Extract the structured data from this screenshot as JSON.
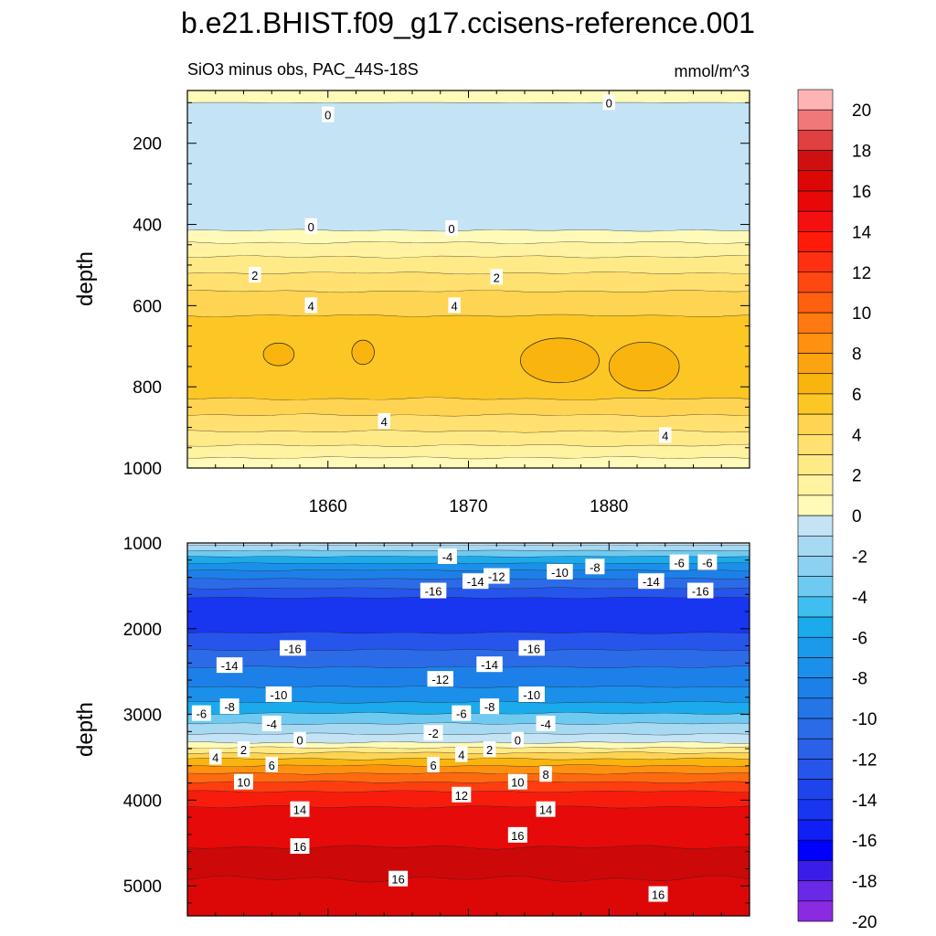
{
  "figure": {
    "title": "b.e21.BHIST.f09_g17.ccisens-reference.001",
    "left_string": "SiO3 minus obs, PAC_44S-18S",
    "right_string": "mmol/m^3"
  },
  "chart_data": [
    {
      "type": "contour",
      "panel": "upper",
      "title": "SiO3 minus obs, PAC_44S-18S",
      "units": "mmol/m^3",
      "xlabel": "",
      "ylabel": "depth",
      "xlim": [
        1850,
        1890
      ],
      "ylim": [
        1000,
        70
      ],
      "x_ticks": [
        1860,
        1870,
        1880
      ],
      "y_ticks": [
        200,
        400,
        600,
        800,
        1000
      ],
      "bands": [
        {
          "level": 0,
          "ytop": 70,
          "ybot": 100,
          "color": "#FFFAB8",
          "wave": 0.3
        },
        {
          "level": -1,
          "ytop": 100,
          "ybot": 415,
          "color": "#C4E3F5",
          "wave": 2.5
        },
        {
          "level": 0,
          "ytop": 415,
          "ybot": 445,
          "color": "#FFFAB8",
          "wave": 3.0
        },
        {
          "level": 1,
          "ytop": 445,
          "ybot": 480,
          "color": "#FFF2A0",
          "wave": 3.0
        },
        {
          "level": 2,
          "ytop": 480,
          "ybot": 520,
          "color": "#FFEA88",
          "wave": 3.0
        },
        {
          "level": 3,
          "ytop": 520,
          "ybot": 565,
          "color": "#FFE070",
          "wave": 3.0
        },
        {
          "level": 4,
          "ytop": 565,
          "ybot": 625,
          "color": "#FFD452",
          "wave": 3.0
        },
        {
          "level": 5,
          "ytop": 625,
          "ybot": 830,
          "color": "#FCC625",
          "wave": 3.5
        },
        {
          "level": 4,
          "ytop": 830,
          "ybot": 870,
          "color": "#FFD452",
          "wave": 3.0
        },
        {
          "level": 3,
          "ytop": 870,
          "ybot": 910,
          "color": "#FFE070",
          "wave": 3.0
        },
        {
          "level": 2,
          "ytop": 910,
          "ybot": 945,
          "color": "#FFEA88",
          "wave": 3.0
        },
        {
          "level": 1,
          "ytop": 945,
          "ybot": 975,
          "color": "#FFF2A0",
          "wave": 3.0
        },
        {
          "level": 0,
          "ytop": 975,
          "ybot": 1000,
          "color": "#FFFAB8",
          "wave": 3.0
        }
      ],
      "blobs": [
        {
          "x": 1856.5,
          "y": 720,
          "rx": 1.1,
          "ry": 28,
          "color": "#F9B40E"
        },
        {
          "x": 1862.5,
          "y": 715,
          "rx": 0.8,
          "ry": 30,
          "color": "#F9B40E"
        },
        {
          "x": 1876.5,
          "y": 735,
          "rx": 2.8,
          "ry": 55,
          "color": "#F9B40E"
        },
        {
          "x": 1882.5,
          "y": 750,
          "rx": 2.5,
          "ry": 60,
          "color": "#F9B40E"
        }
      ],
      "contour_labels": [
        {
          "text": "0",
          "x": 1860.0,
          "y": 130
        },
        {
          "text": "0",
          "x": 1880.0,
          "y": 100
        },
        {
          "text": "0",
          "x": 1858.8,
          "y": 405
        },
        {
          "text": "0",
          "x": 1868.8,
          "y": 410
        },
        {
          "text": "2",
          "x": 1854.8,
          "y": 525
        },
        {
          "text": "2",
          "x": 1872.0,
          "y": 530
        },
        {
          "text": "4",
          "x": 1858.8,
          "y": 600
        },
        {
          "text": "4",
          "x": 1869.0,
          "y": 600
        },
        {
          "text": "4",
          "x": 1864.0,
          "y": 885
        },
        {
          "text": "4",
          "x": 1884.0,
          "y": 920
        }
      ]
    },
    {
      "type": "contour",
      "panel": "lower",
      "title": "",
      "xlabel": "",
      "ylabel": "depth",
      "xlim": [
        1850,
        1890
      ],
      "ylim": [
        5350,
        1000
      ],
      "y_ticks": [
        1000,
        2000,
        3000,
        4000,
        5000
      ],
      "bands": [
        {
          "level": -1,
          "ytop": 1000,
          "ybot": 1030,
          "color": "#C4E3F5",
          "wave": 3
        },
        {
          "level": -3,
          "ytop": 1030,
          "ybot": 1090,
          "color": "#A8D9F2",
          "wave": 4
        },
        {
          "level": -5,
          "ytop": 1090,
          "ybot": 1160,
          "color": "#6FCAF1",
          "wave": 5
        },
        {
          "level": -7,
          "ytop": 1160,
          "ybot": 1240,
          "color": "#1BAAEB",
          "wave": 6
        },
        {
          "level": -9,
          "ytop": 1240,
          "ybot": 1320,
          "color": "#1B90EA",
          "wave": 7
        },
        {
          "level": -11,
          "ytop": 1320,
          "ybot": 1420,
          "color": "#1D80E8",
          "wave": 8
        },
        {
          "level": -13,
          "ytop": 1420,
          "ybot": 1530,
          "color": "#2C6BE8",
          "wave": 8
        },
        {
          "level": -15,
          "ytop": 1530,
          "ybot": 1640,
          "color": "#2655EB",
          "wave": 9
        },
        {
          "level": -17,
          "ytop": 1640,
          "ybot": 2050,
          "color": "#1835F0",
          "wave": 12
        },
        {
          "level": -15,
          "ytop": 2050,
          "ybot": 2250,
          "color": "#2655EB",
          "wave": 12
        },
        {
          "level": -13,
          "ytop": 2250,
          "ybot": 2450,
          "color": "#2C6BE8",
          "wave": 12
        },
        {
          "level": -11,
          "ytop": 2450,
          "ybot": 2680,
          "color": "#1D80E8",
          "wave": 12
        },
        {
          "level": -9,
          "ytop": 2680,
          "ybot": 2860,
          "color": "#1B90EA",
          "wave": 12
        },
        {
          "level": -7,
          "ytop": 2860,
          "ybot": 2990,
          "color": "#1BAAEB",
          "wave": 12
        },
        {
          "level": -5,
          "ytop": 2990,
          "ybot": 3110,
          "color": "#6FCAF1",
          "wave": 12
        },
        {
          "level": -3,
          "ytop": 3110,
          "ybot": 3230,
          "color": "#A8D9F2",
          "wave": 12
        },
        {
          "level": -1,
          "ytop": 3230,
          "ybot": 3330,
          "color": "#C4E3F5",
          "wave": 12
        },
        {
          "level": 0,
          "ytop": 3330,
          "ybot": 3390,
          "color": "#FFFAB8",
          "wave": 12
        },
        {
          "level": 2,
          "ytop": 3390,
          "ybot": 3450,
          "color": "#FFEA88",
          "wave": 12
        },
        {
          "level": 4,
          "ytop": 3450,
          "ybot": 3520,
          "color": "#FFD452",
          "wave": 12
        },
        {
          "level": 6,
          "ytop": 3520,
          "ybot": 3600,
          "color": "#F9B40E",
          "wave": 12
        },
        {
          "level": 8,
          "ytop": 3600,
          "ybot": 3690,
          "color": "#FF9010",
          "wave": 12
        },
        {
          "level": 10,
          "ytop": 3690,
          "ybot": 3790,
          "color": "#FF6A10",
          "wave": 12
        },
        {
          "level": 12,
          "ytop": 3790,
          "ybot": 3900,
          "color": "#FF3E10",
          "wave": 12
        },
        {
          "level": 14,
          "ytop": 3900,
          "ybot": 4080,
          "color": "#F81C0D",
          "wave": 15
        },
        {
          "level": 15,
          "ytop": 4080,
          "ybot": 4550,
          "color": "#E60A0A",
          "wave": 25
        },
        {
          "level": 17,
          "ytop": 4550,
          "ybot": 4920,
          "color": "#CC0808",
          "wave": 40
        },
        {
          "level": 16,
          "ytop": 4920,
          "ybot": 5350,
          "color": "#DC0808",
          "wave": 30
        }
      ],
      "contour_labels": [
        {
          "text": "-4",
          "x": 1868.5,
          "y": 1160
        },
        {
          "text": "-6",
          "x": 1885.0,
          "y": 1230
        },
        {
          "text": "-6",
          "x": 1887.0,
          "y": 1230
        },
        {
          "text": "-8",
          "x": 1879.0,
          "y": 1280
        },
        {
          "text": "-10",
          "x": 1876.5,
          "y": 1340
        },
        {
          "text": "-12",
          "x": 1872.0,
          "y": 1390
        },
        {
          "text": "-14",
          "x": 1870.5,
          "y": 1450
        },
        {
          "text": "-14",
          "x": 1883.0,
          "y": 1450
        },
        {
          "text": "-16",
          "x": 1867.5,
          "y": 1560
        },
        {
          "text": "-16",
          "x": 1886.5,
          "y": 1560
        },
        {
          "text": "-16",
          "x": 1857.5,
          "y": 2230
        },
        {
          "text": "-16",
          "x": 1874.5,
          "y": 2230
        },
        {
          "text": "-14",
          "x": 1853.0,
          "y": 2430
        },
        {
          "text": "-14",
          "x": 1871.5,
          "y": 2420
        },
        {
          "text": "-12",
          "x": 1868.0,
          "y": 2590
        },
        {
          "text": "-10",
          "x": 1856.5,
          "y": 2770
        },
        {
          "text": "-10",
          "x": 1874.5,
          "y": 2770
        },
        {
          "text": "-8",
          "x": 1853.0,
          "y": 2910
        },
        {
          "text": "-8",
          "x": 1871.5,
          "y": 2910
        },
        {
          "text": "-6",
          "x": 1851.0,
          "y": 2990
        },
        {
          "text": "-6",
          "x": 1869.5,
          "y": 2990
        },
        {
          "text": "-4",
          "x": 1856.0,
          "y": 3110
        },
        {
          "text": "-4",
          "x": 1875.5,
          "y": 3110
        },
        {
          "text": "-2",
          "x": 1867.5,
          "y": 3220
        },
        {
          "text": "0",
          "x": 1858.0,
          "y": 3300
        },
        {
          "text": "0",
          "x": 1873.5,
          "y": 3300
        },
        {
          "text": "2",
          "x": 1854.0,
          "y": 3410
        },
        {
          "text": "2",
          "x": 1871.5,
          "y": 3410
        },
        {
          "text": "4",
          "x": 1852.0,
          "y": 3500
        },
        {
          "text": "4",
          "x": 1869.5,
          "y": 3470
        },
        {
          "text": "6",
          "x": 1856.0,
          "y": 3590
        },
        {
          "text": "6",
          "x": 1867.5,
          "y": 3590
        },
        {
          "text": "8",
          "x": 1875.5,
          "y": 3700
        },
        {
          "text": "10",
          "x": 1854.0,
          "y": 3790
        },
        {
          "text": "10",
          "x": 1873.5,
          "y": 3790
        },
        {
          "text": "12",
          "x": 1869.5,
          "y": 3940
        },
        {
          "text": "14",
          "x": 1858.0,
          "y": 4110
        },
        {
          "text": "14",
          "x": 1875.5,
          "y": 4110
        },
        {
          "text": "16",
          "x": 1873.5,
          "y": 4410
        },
        {
          "text": "16",
          "x": 1858.0,
          "y": 4540
        },
        {
          "text": "16",
          "x": 1865.0,
          "y": 4920
        },
        {
          "text": "16",
          "x": 1883.5,
          "y": 5100
        }
      ]
    }
  ],
  "colorbar": {
    "labels": [
      "20",
      "18",
      "16",
      "14",
      "12",
      "10",
      "8",
      "6",
      "4",
      "2",
      "0",
      "-2",
      "-4",
      "-6",
      "-8",
      "-10",
      "-12",
      "-14",
      "-16",
      "-18",
      "-20"
    ],
    "colors": [
      "#FFB4B4",
      "#F07878",
      "#E04040",
      "#D01010",
      "#DC0808",
      "#E80808",
      "#F41010",
      "#FF1A0A",
      "#FF3010",
      "#FF4810",
      "#FF6010",
      "#FF7810",
      "#FF9010",
      "#FCA410",
      "#F9B40E",
      "#FCC625",
      "#FFD452",
      "#FFE070",
      "#FFEA88",
      "#FFF2A0",
      "#FFFAB8",
      "#C4E3F5",
      "#A8D9F2",
      "#8CD0F2",
      "#6FCAF1",
      "#40BEF0",
      "#1BAAEB",
      "#1B9AEB",
      "#1B90EA",
      "#1D80E8",
      "#2476E8",
      "#2C6BE8",
      "#2B60E8",
      "#2655EB",
      "#1E45ED",
      "#1835F0",
      "#1020F5",
      "#0000FF",
      "#3A1EE8",
      "#6A28E8",
      "#8A2BE2"
    ]
  }
}
